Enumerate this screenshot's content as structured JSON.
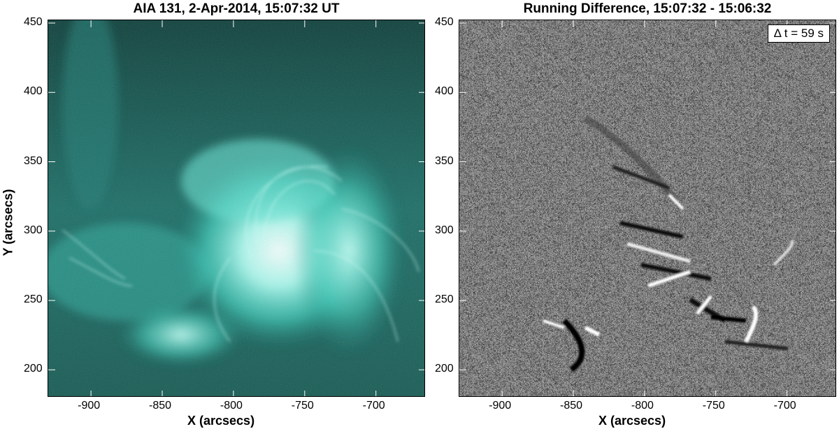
{
  "panels": [
    {
      "title": "AIA 131, 2-Apr-2014, 15:07:32 UT",
      "xlabel": "X (arcsecs)",
      "ylabel": "Y (arcsecs)",
      "xticks": [
        "-900",
        "-850",
        "-800",
        "-750",
        "-700"
      ],
      "yticks": [
        "450",
        "400",
        "350",
        "300",
        "250",
        "200"
      ],
      "colormap": "teal"
    },
    {
      "title": "Running Difference, 15:07:32 - 15:06:32",
      "xlabel": "X (arcsecs)",
      "xticks": [
        "-900",
        "-850",
        "-800",
        "-750",
        "-700"
      ],
      "yticks": [
        "450",
        "400",
        "350",
        "300",
        "250",
        "200"
      ],
      "annotation": "Δ t = 59 s",
      "colormap": "grayscale"
    }
  ],
  "axes": {
    "xrange": [
      -930,
      -665
    ],
    "yrange": [
      180,
      452
    ],
    "xtick_values": [
      -900,
      -850,
      -800,
      -750,
      -700
    ],
    "ytick_values": [
      450,
      400,
      350,
      300,
      250,
      200
    ]
  },
  "colors": {
    "teal_bright": "#d8fff8",
    "teal_mid": "#3fd8c4",
    "teal_dark": "#0a3a36",
    "gray_bg": "#8c8c8c"
  }
}
